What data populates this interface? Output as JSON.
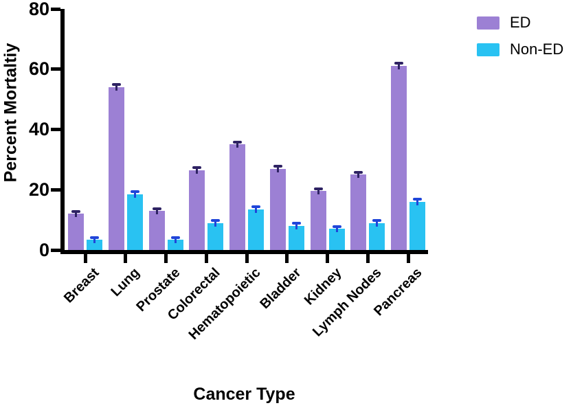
{
  "chart_data": {
    "type": "bar",
    "title": "",
    "xlabel": "Cancer Type",
    "ylabel": "Percent Mortaltiy",
    "ylim": [
      0,
      80
    ],
    "yticks": [
      0,
      20,
      40,
      60,
      80
    ],
    "grid": false,
    "legend_position": "top-right",
    "categories": [
      "Breast",
      "Lung",
      "Prostate",
      "Colorectal",
      "Hematopoietic",
      "Bladder",
      "Kidney",
      "Lymph Nodes",
      "Pancreas"
    ],
    "series": [
      {
        "name": "ED",
        "color": "#9c80d4",
        "error_color": "#2e2263",
        "values": [
          12,
          54,
          13,
          26.5,
          35,
          27,
          19.5,
          25,
          61
        ],
        "errors": [
          0.5,
          0.7,
          0.4,
          0.6,
          0.6,
          0.6,
          0.5,
          0.5,
          0.7
        ]
      },
      {
        "name": "Non-ED",
        "color": "#29c2f2",
        "error_color": "#1f45d9",
        "values": [
          3.5,
          18.5,
          3.5,
          9,
          13.5,
          8,
          7,
          9,
          16
        ],
        "errors": [
          0.3,
          0.7,
          0.3,
          0.5,
          0.6,
          0.6,
          0.5,
          0.5,
          0.6
        ]
      }
    ]
  }
}
